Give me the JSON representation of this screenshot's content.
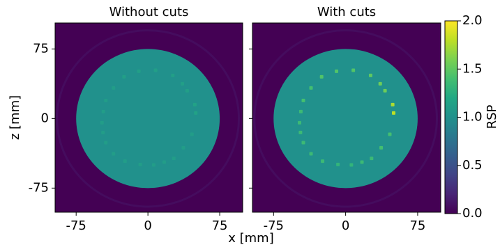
{
  "chart_data": {
    "type": "heatmap",
    "xlabel": "x [mm]",
    "ylabel": "z [mm]",
    "xlim": [
      -97,
      99
    ],
    "ylim": [
      -101,
      103
    ],
    "xticks": [
      -75,
      0,
      75
    ],
    "yticks": [
      -75,
      0,
      75
    ],
    "colormap": "viridis",
    "colorbar": {
      "label": "RSP",
      "lim": [
        0,
        2
      ],
      "ticks": [
        {
          "value": 0,
          "label": "0.0"
        },
        0.5,
        {
          "value": 1,
          "label": "1.0"
        },
        1.5,
        {
          "value": 2,
          "label": "2.0"
        }
      ]
    },
    "panels": [
      {
        "title": "Without cuts",
        "outer_ring": {
          "radius": 95,
          "rsp": 0.06
        },
        "phantom": {
          "radius": 75,
          "rsp": 1.0
        },
        "inserts": {
          "x": [
            -46.6,
            -48,
            -47,
            -44,
            -36,
            -24,
            -8,
            6,
            17,
            27,
            37,
            46,
            50,
            49,
            41,
            36,
            26,
            8,
            -9.5,
            -25,
            -36,
            -44
          ],
          "z": [
            7.5,
            -4.5,
            -15,
            -26,
            -38,
            -46,
            -49.5,
            -50,
            -47,
            -43,
            -31.5,
            -17,
            6,
            15,
            30,
            37.5,
            46.5,
            52,
            51,
            45,
            33,
            19.5
          ],
          "values": [
            1.1,
            1.1,
            1.1,
            1.1,
            1.1,
            1.1,
            1.1,
            1.1,
            1.1,
            1.1,
            1.1,
            1.1,
            1.15,
            1.15,
            1.12,
            1.12,
            1.12,
            1.12,
            1.12,
            1.12,
            1.1,
            1.1
          ]
        }
      },
      {
        "title": "With cuts",
        "outer_ring": {
          "radius": 95,
          "rsp": 0.06
        },
        "phantom": {
          "radius": 75,
          "rsp": 1.0
        },
        "inserts": {
          "x": [
            -46.6,
            -48,
            -47,
            -44,
            -36,
            -24,
            -8,
            6,
            17,
            27,
            37,
            46,
            50,
            49,
            41,
            36,
            26,
            8,
            -9.5,
            -25,
            -36,
            -44
          ],
          "z": [
            7.5,
            -4.5,
            -15,
            -26,
            -38,
            -46,
            -49.5,
            -50,
            -47,
            -43,
            -31.5,
            -17,
            6,
            15,
            30,
            37.5,
            46.5,
            52,
            51,
            45,
            33,
            19.5
          ],
          "values": [
            1.35,
            1.35,
            1.35,
            1.35,
            1.35,
            1.35,
            1.3,
            1.3,
            1.35,
            1.35,
            1.4,
            1.4,
            1.8,
            1.75,
            1.55,
            1.55,
            1.5,
            1.45,
            1.45,
            1.45,
            1.4,
            1.4
          ]
        }
      }
    ]
  }
}
